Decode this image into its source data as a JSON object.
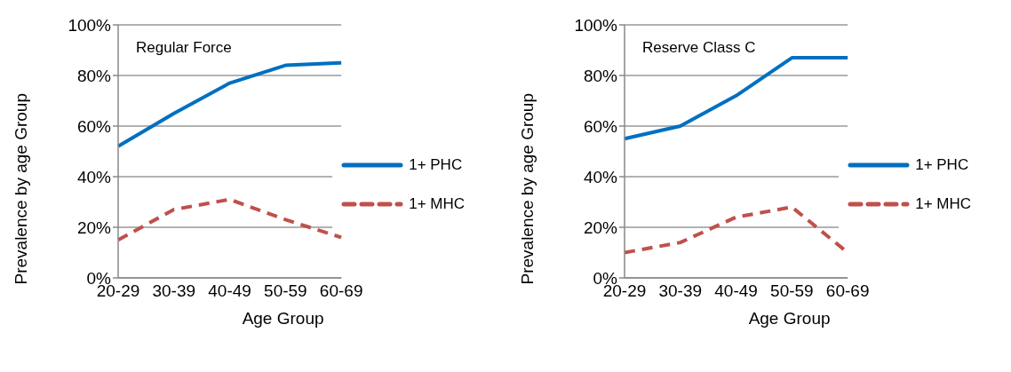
{
  "chart_data": [
    {
      "type": "line",
      "title": "Regular Force",
      "xlabel": "Age Group",
      "ylabel": "Prevalence by age Group",
      "categories": [
        "20-29",
        "30-39",
        "40-49",
        "50-59",
        "60-69"
      ],
      "series": [
        {
          "name": "1+ PHC",
          "color": "#0070c0",
          "line_style": "solid",
          "values": [
            52,
            65,
            77,
            84,
            85
          ]
        },
        {
          "name": "1+ MHC",
          "color": "#c0504d",
          "line_style": "dashed",
          "values": [
            15,
            27,
            31,
            23,
            16
          ]
        }
      ],
      "ylim": [
        0,
        100
      ],
      "yticks": [
        {
          "value": 0,
          "label": "0%"
        },
        {
          "value": 20,
          "label": "20%"
        },
        {
          "value": 40,
          "label": "40%"
        },
        {
          "value": 60,
          "label": "60%"
        },
        {
          "value": 80,
          "label": "80%"
        },
        {
          "value": 100,
          "label": "100%"
        }
      ],
      "grid": "y",
      "legend": "right",
      "marker": "none"
    },
    {
      "type": "line",
      "title": "Reserve Class C",
      "xlabel": "Age Group",
      "ylabel": "Prevalence by age Group",
      "categories": [
        "20-29",
        "30-39",
        "40-49",
        "50-59",
        "60-69"
      ],
      "series": [
        {
          "name": "1+ PHC",
          "color": "#0070c0",
          "line_style": "solid",
          "values": [
            55,
            60,
            72,
            87,
            87
          ]
        },
        {
          "name": "1+ MHC",
          "color": "#c0504d",
          "line_style": "dashed",
          "values": [
            10,
            14,
            24,
            28,
            10
          ]
        }
      ],
      "ylim": [
        0,
        100
      ],
      "yticks": [
        {
          "value": 0,
          "label": "0%"
        },
        {
          "value": 20,
          "label": "20%"
        },
        {
          "value": 40,
          "label": "40%"
        },
        {
          "value": 60,
          "label": "60%"
        },
        {
          "value": 80,
          "label": "80%"
        },
        {
          "value": 100,
          "label": "100%"
        }
      ],
      "grid": "y",
      "legend": "right",
      "marker": "none"
    }
  ]
}
